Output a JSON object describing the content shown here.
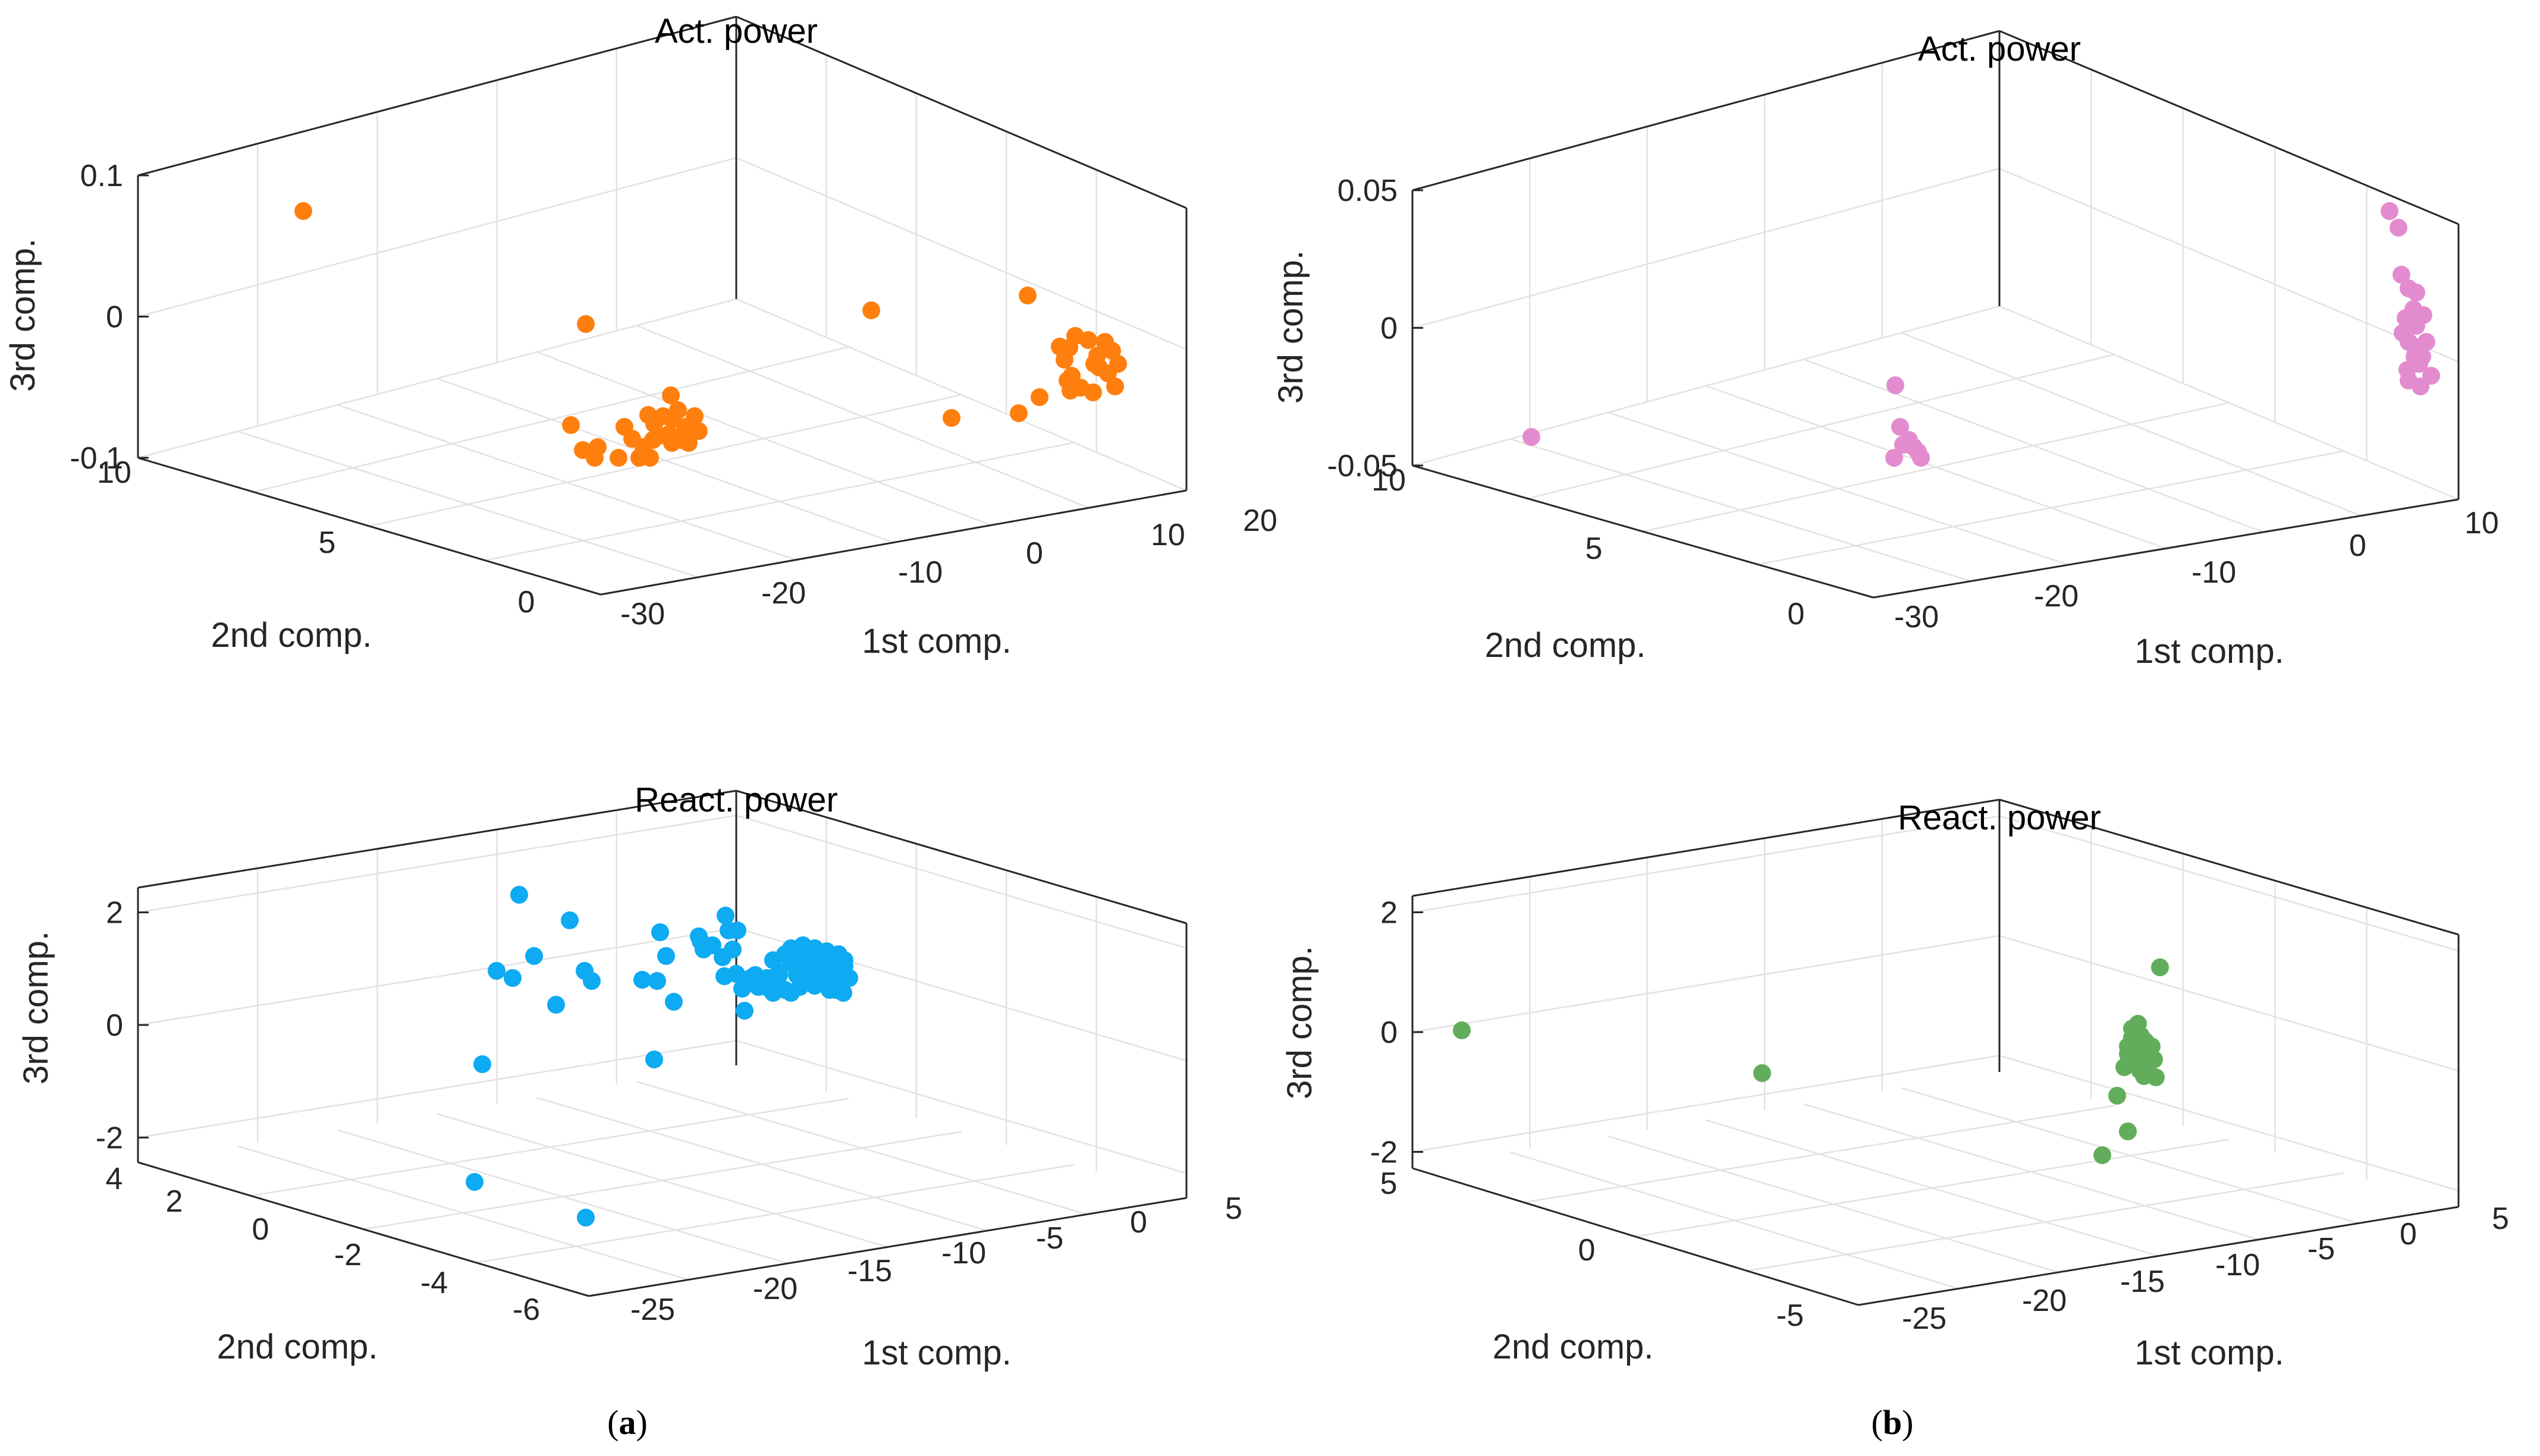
{
  "chart_data": [
    {
      "type": "scatter",
      "panel": "a",
      "title": "Act. power",
      "xlabel": "1st comp.",
      "ylabel": "2nd comp.",
      "zlabel": "3rd comp.",
      "xticks": [
        "-30",
        "-20",
        "-10",
        "0",
        "10",
        "20"
      ],
      "yticks": [
        "10",
        "5",
        "0"
      ],
      "zticks": [
        "0.1",
        "0",
        "-0.1"
      ],
      "marker_color": "#ff7f0e",
      "series": [
        {
          "name": "Act. power (a)",
          "points": []
        }
      ]
    },
    {
      "type": "scatter",
      "panel": "b",
      "title": "Act. power",
      "xlabel": "1st comp.",
      "ylabel": "2nd comp.",
      "zlabel": "3rd comp.",
      "xticks": [
        "-30",
        "-20",
        "-10",
        "0",
        "10"
      ],
      "yticks": [
        "10",
        "5",
        "0"
      ],
      "zticks": [
        "0.05",
        "0",
        "-0.05"
      ],
      "marker_color": "#e28ccf",
      "series": [
        {
          "name": "Act. power (b)",
          "points": []
        }
      ]
    },
    {
      "type": "scatter",
      "panel": "a",
      "title": "React. power",
      "xlabel": "1st comp.",
      "ylabel": "2nd comp.",
      "zlabel": "3rd comp.",
      "xticks": [
        "-25",
        "-20",
        "-15",
        "-10",
        "-5",
        "0",
        "5"
      ],
      "yticks": [
        "4",
        "2",
        "0",
        "-2",
        "-4",
        "-6"
      ],
      "zticks": [
        "2",
        "0",
        "-2"
      ],
      "marker_color": "#0eaaf2",
      "series": [
        {
          "name": "React. power (a)",
          "points": []
        }
      ]
    },
    {
      "type": "scatter",
      "panel": "b",
      "title": "React. power",
      "xlabel": "1st comp.",
      "ylabel": "2nd comp.",
      "zlabel": "3rd comp.",
      "xticks": [
        "-25",
        "-20",
        "-15",
        "-10",
        "-5",
        "0",
        "5"
      ],
      "yticks": [
        "5",
        "0",
        "-5"
      ],
      "zticks": [
        "2",
        "0",
        "-2"
      ],
      "marker_color": "#62ad5c",
      "series": [
        {
          "name": "React. power (b)",
          "points": []
        }
      ]
    }
  ],
  "captions": {
    "a": "a",
    "b": "b"
  }
}
